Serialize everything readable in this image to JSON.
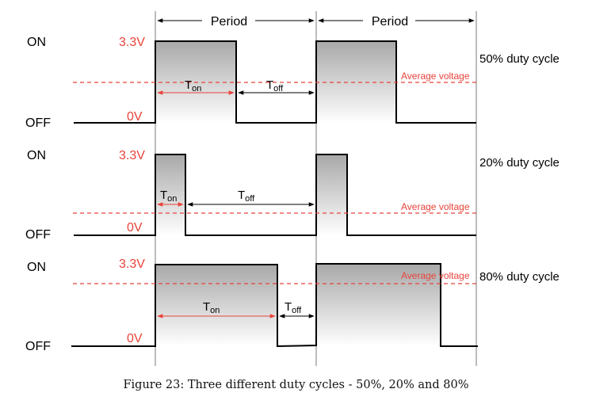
{
  "labels": {
    "period": "Period",
    "on": "ON",
    "off": "OFF",
    "high_voltage": "3.3V",
    "low_voltage": "0V",
    "average_voltage": "Average voltage",
    "t_on_main": "T",
    "t_on_sub": "on",
    "t_off_main": "T",
    "t_off_sub": "off"
  },
  "panels": [
    {
      "duty_label": "50% duty cycle",
      "duty_cycle": 0.5
    },
    {
      "duty_label": "20% duty cycle",
      "duty_cycle": 0.2
    },
    {
      "duty_label": "80% duty cycle",
      "duty_cycle": 0.8
    }
  ],
  "caption": "Figure 23: Three different duty cycles - 50%, 20% and 80%",
  "colors": {
    "signal": "#000000",
    "annotation": "#e8433a",
    "fill_top": "#a8a8a8",
    "fill_bottom": "#ffffff",
    "guide": "#7a7a7a"
  }
}
